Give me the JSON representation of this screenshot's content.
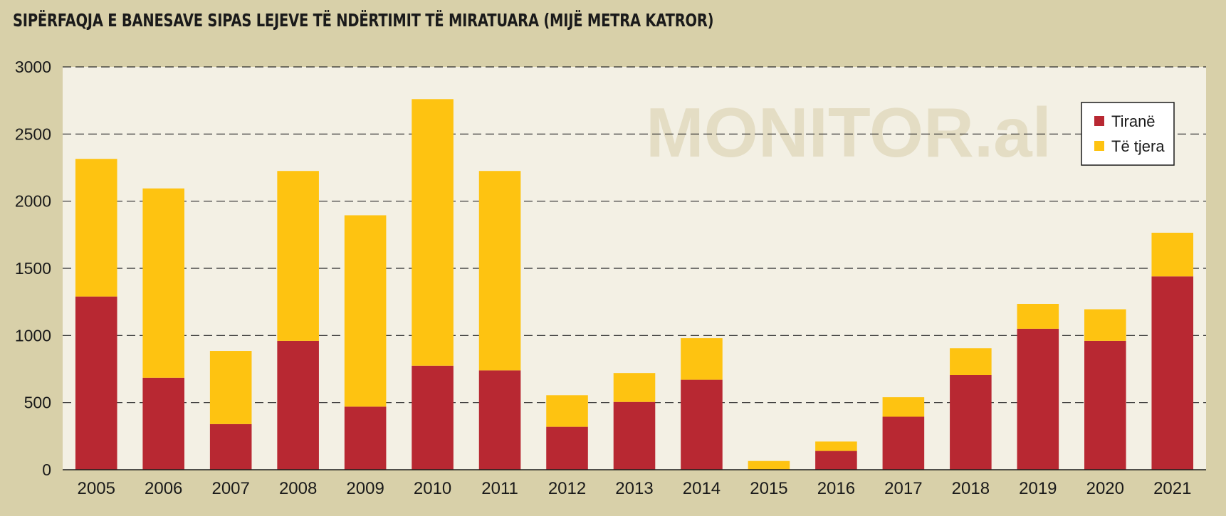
{
  "title": "SIPËRFAQJA E BANESAVE SIPAS LEJEVE TË NDËRTIMIT TË MIRATUARA (MIJË METRA KATROR)",
  "watermark": "MONITOR.al",
  "chart_data": {
    "type": "bar",
    "stacked": true,
    "title": "SIPËRFAQJA E BANESAVE SIPAS LEJEVE TË NDËRTIMIT TË MIRATUARA (MIJË METRA KATROR)",
    "categories": [
      "2005",
      "2006",
      "2007",
      "2008",
      "2009",
      "2010",
      "2011",
      "2012",
      "2013",
      "2014",
      "2015",
      "2016",
      "2017",
      "2018",
      "2019",
      "2020",
      "2021"
    ],
    "series": [
      {
        "name": "Tiranë",
        "color": "#b82832",
        "values": [
          1290,
          685,
          340,
          960,
          470,
          775,
          740,
          320,
          505,
          670,
          0,
          140,
          395,
          705,
          1050,
          960,
          1440
        ]
      },
      {
        "name": "Të tjera",
        "color": "#fec311",
        "values": [
          1025,
          1410,
          545,
          1265,
          1425,
          1985,
          1485,
          235,
          215,
          310,
          65,
          70,
          145,
          200,
          185,
          235,
          325
        ]
      }
    ],
    "ylim": [
      0,
      3000
    ],
    "yticks": [
      0,
      500,
      1000,
      1500,
      2000,
      2500,
      3000
    ],
    "grid": true,
    "legend_position": "top-right"
  }
}
